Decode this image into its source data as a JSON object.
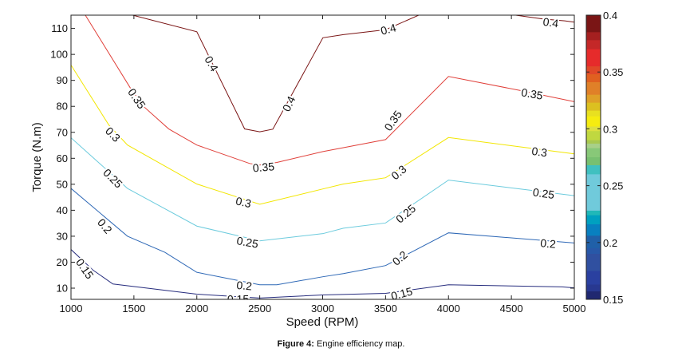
{
  "chart_data": {
    "type": "contour",
    "xlabel": "Speed (RPM)",
    "ylabel": "Torque (N.m)",
    "xlim": [
      1000,
      5000
    ],
    "ylim": [
      5.7,
      115.1
    ],
    "xticks": [
      1000,
      1500,
      2000,
      2500,
      3000,
      3500,
      4000,
      4500,
      5000
    ],
    "yticks": [
      10,
      20,
      30,
      40,
      50,
      60,
      70,
      80,
      90,
      100,
      110
    ],
    "contours": [
      {
        "level": "0.4",
        "color": "#7a1414",
        "segments": [
          [
            [
              1490,
              115.1
            ],
            [
              2000,
              108.7
            ],
            [
              2380,
              71.3
            ],
            [
              2500,
              70.2
            ],
            [
              2604,
              71.2
            ],
            [
              3002,
              106.4
            ],
            [
              3165,
              107.6
            ],
            [
              3500,
              109.5
            ],
            [
              3773,
              115.3
            ]
          ],
          [
            [
              4504,
              115.3
            ],
            [
              4756,
              113.6
            ],
            [
              4924,
              112.9
            ],
            [
              5000,
              112.4
            ]
          ]
        ]
      },
      {
        "level": "0.35",
        "color": "#e0403a",
        "segments": [
          [
            [
              1114,
              115.1
            ],
            [
              1470,
              87.2
            ],
            [
              1576,
              80
            ],
            [
              1777,
              71.3
            ],
            [
              2000,
              65.1
            ],
            [
              2420,
              58
            ],
            [
              2500,
              57.4
            ],
            [
              2636,
              58.4
            ],
            [
              3002,
              62.6
            ],
            [
              3165,
              64.1
            ],
            [
              3500,
              67.2
            ],
            [
              4000,
              91.5
            ],
            [
              4571,
              86.1
            ],
            [
              5000,
              81.8
            ]
          ]
        ]
      },
      {
        "level": "0.3",
        "color": "#f2e600",
        "segments": [
          [
            [
              1000,
              95.9
            ],
            [
              1301,
              72.8
            ],
            [
              1449,
              65.1
            ],
            [
              2000,
              50.1
            ],
            [
              2500,
              42.3
            ],
            [
              3002,
              48.2
            ],
            [
              3165,
              50.1
            ],
            [
              3500,
              52.5
            ],
            [
              4000,
              68
            ],
            [
              5000,
              61.7
            ]
          ]
        ]
      },
      {
        "level": "0.25",
        "color": "#6ccbdd",
        "segments": [
          [
            [
              1000,
              67.9
            ],
            [
              1449,
              48.4
            ],
            [
              2000,
              33.9
            ],
            [
              2500,
              28.2
            ],
            [
              3002,
              31
            ],
            [
              3165,
              33.1
            ],
            [
              3500,
              35.1
            ],
            [
              4000,
              51.6
            ],
            [
              5000,
              45.6
            ]
          ]
        ]
      },
      {
        "level": "0.2",
        "color": "#2e68b6",
        "segments": [
          [
            [
              1000,
              48.4
            ],
            [
              1449,
              30
            ],
            [
              1746,
              23.8
            ],
            [
              2000,
              16.1
            ],
            [
              2500,
              11.3
            ],
            [
              2636,
              11.3
            ],
            [
              3002,
              14.4
            ],
            [
              3165,
              15.6
            ],
            [
              3500,
              18.7
            ],
            [
              4000,
              31.3
            ],
            [
              5000,
              27.4
            ]
          ]
        ]
      },
      {
        "level": "0.15",
        "color": "#272d7e",
        "segments": [
          [
            [
              1000,
              24.9
            ],
            [
              1174,
              17
            ],
            [
              1333,
              11.6
            ],
            [
              2000,
              7.7
            ],
            [
              2500,
              6.2
            ],
            [
              3002,
              7.4
            ],
            [
              3500,
              8
            ],
            [
              4000,
              11.3
            ],
            [
              4903,
              10.5
            ],
            [
              5000,
              10.1
            ]
          ]
        ]
      }
    ],
    "contour_labels": [
      {
        "text": "0.4",
        "x": 2117,
        "y": 96.4
      },
      {
        "text": "0.4",
        "x": 2731,
        "y": 81
      },
      {
        "text": "0.4",
        "x": 3522,
        "y": 109.7
      },
      {
        "text": "0.4",
        "x": 4813,
        "y": 112.3
      },
      {
        "text": "0.35",
        "x": 1523,
        "y": 83
      },
      {
        "text": "0.35",
        "x": 2530,
        "y": 56.6
      },
      {
        "text": "0.35",
        "x": 3559,
        "y": 74.5
      },
      {
        "text": "0.35",
        "x": 4664,
        "y": 84.8
      },
      {
        "text": "0.3",
        "x": 1333,
        "y": 69.2
      },
      {
        "text": "0.3",
        "x": 2371,
        "y": 43.1
      },
      {
        "text": "0.3",
        "x": 3605,
        "y": 54.6
      },
      {
        "text": "0.3",
        "x": 4723,
        "y": 62.5
      },
      {
        "text": "0.25",
        "x": 1333,
        "y": 52.3
      },
      {
        "text": "0.25",
        "x": 2403,
        "y": 27.7
      },
      {
        "text": "0.25",
        "x": 3660,
        "y": 38.7
      },
      {
        "text": "0.25",
        "x": 4756,
        "y": 46.5
      },
      {
        "text": "0.2",
        "x": 1269,
        "y": 33.9
      },
      {
        "text": "0.2",
        "x": 2377,
        "y": 11
      },
      {
        "text": "0.2",
        "x": 3613,
        "y": 21.6
      },
      {
        "text": "0.2",
        "x": 4792,
        "y": 27.2
      },
      {
        "text": "0.15",
        "x": 1110,
        "y": 17.5
      },
      {
        "text": "0.15",
        "x": 2328,
        "y": 5.9
      },
      {
        "text": "0.15",
        "x": 3628,
        "y": 7.9
      }
    ],
    "colorbar": {
      "range": [
        0.15,
        0.4
      ],
      "ticks": [
        "0.15",
        "0.2",
        "0.25",
        "0.3",
        "0.35",
        "0.4"
      ],
      "bands": [
        {
          "from": 0.385,
          "to": 0.4,
          "color": "#7a1515"
        },
        {
          "from": 0.378,
          "to": 0.385,
          "color": "#a52020"
        },
        {
          "from": 0.37,
          "to": 0.378,
          "color": "#c42828"
        },
        {
          "from": 0.355,
          "to": 0.37,
          "color": "#e62b2b"
        },
        {
          "from": 0.348,
          "to": 0.355,
          "color": "#e04828"
        },
        {
          "from": 0.341,
          "to": 0.348,
          "color": "#e06020"
        },
        {
          "from": 0.33,
          "to": 0.341,
          "color": "#e08028"
        },
        {
          "from": 0.323,
          "to": 0.33,
          "color": "#dfa028"
        },
        {
          "from": 0.316,
          "to": 0.323,
          "color": "#dcc020"
        },
        {
          "from": 0.311,
          "to": 0.316,
          "color": "#e8e020"
        },
        {
          "from": 0.302,
          "to": 0.311,
          "color": "#f5ec10"
        },
        {
          "from": 0.298,
          "to": 0.302,
          "color": "#dde040"
        },
        {
          "from": 0.29,
          "to": 0.298,
          "color": "#c0d840"
        },
        {
          "from": 0.287,
          "to": 0.29,
          "color": "#a8c850"
        },
        {
          "from": 0.283,
          "to": 0.287,
          "color": "#a8d088"
        },
        {
          "from": 0.275,
          "to": 0.283,
          "color": "#88c878"
        },
        {
          "from": 0.268,
          "to": 0.275,
          "color": "#78c070"
        },
        {
          "from": 0.26,
          "to": 0.268,
          "color": "#40c0c0"
        },
        {
          "from": 0.228,
          "to": 0.26,
          "color": "#70cadb"
        },
        {
          "from": 0.224,
          "to": 0.228,
          "color": "#20b8b8"
        },
        {
          "from": 0.216,
          "to": 0.224,
          "color": "#00a0c0"
        },
        {
          "from": 0.206,
          "to": 0.216,
          "color": "#0880c0"
        },
        {
          "from": 0.195,
          "to": 0.206,
          "color": "#2060a8"
        },
        {
          "from": 0.19,
          "to": 0.195,
          "color": "#2858a8"
        },
        {
          "from": 0.175,
          "to": 0.19,
          "color": "#3050a0"
        },
        {
          "from": 0.163,
          "to": 0.175,
          "color": "#2a40a0"
        },
        {
          "from": 0.157,
          "to": 0.163,
          "color": "#283890"
        },
        {
          "from": 0.15,
          "to": 0.157,
          "color": "#202870"
        }
      ]
    }
  },
  "caption": {
    "prefix": "Figure 4:",
    "text": " Engine efficiency map."
  }
}
